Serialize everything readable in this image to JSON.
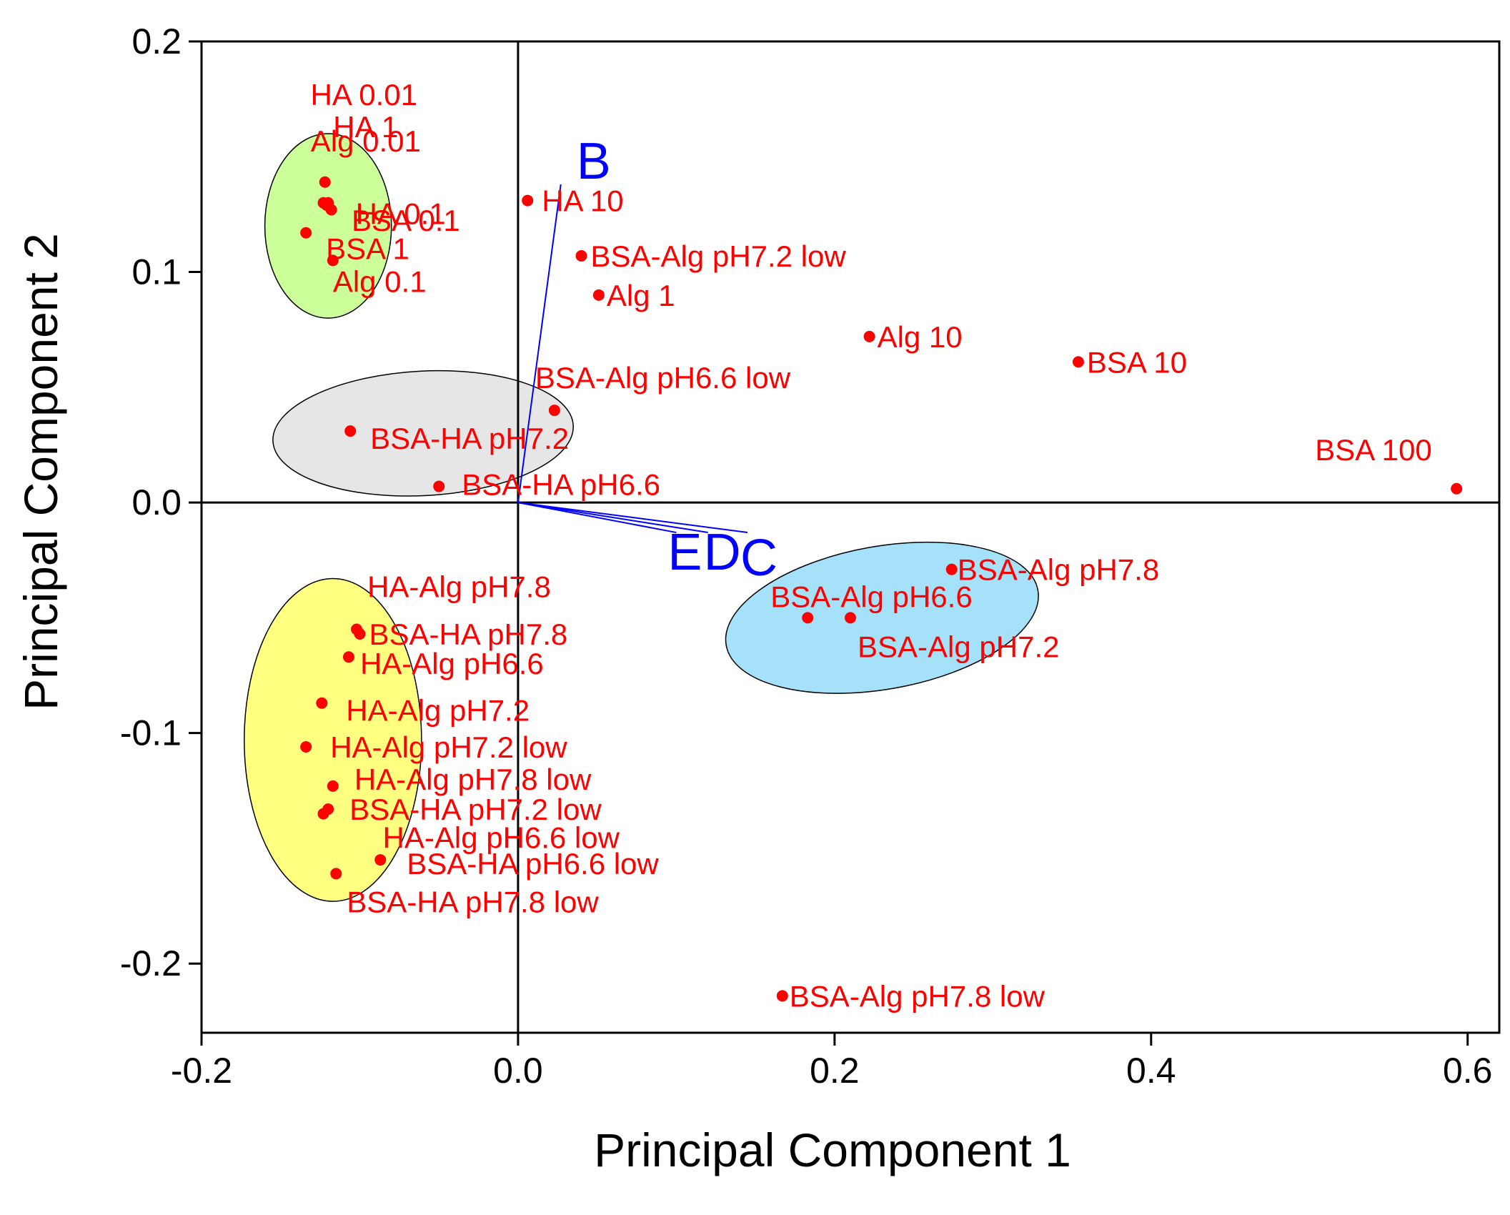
{
  "chart_data": {
    "type": "scatter",
    "title": "",
    "xlabel": "Principal Component 1",
    "ylabel": "Principal Component 2",
    "xlim": [
      -0.2,
      0.62
    ],
    "ylim": [
      -0.23,
      0.2
    ],
    "xticks": [
      -0.2,
      0.0,
      0.2,
      0.4,
      0.6
    ],
    "xtick_labels": [
      "-0.2",
      "0.0",
      "0.2",
      "0.4",
      "0.6"
    ],
    "yticks": [
      -0.2,
      -0.1,
      0.0,
      0.1,
      0.2
    ],
    "ytick_labels": [
      "-0.2",
      "-0.1",
      "0.0",
      "0.1",
      "0.2"
    ],
    "grid": false,
    "colors": {
      "points": "#ff0000",
      "vectors": "#0000ff",
      "axes": "#000000",
      "cluster_green": "#ccff99",
      "cluster_gray": "#e6e6e6",
      "cluster_yellow": "#ffff80",
      "cluster_blue": "#a6e1fa"
    },
    "clusters": [
      {
        "name": "green",
        "center": [
          -0.12,
          0.12
        ],
        "rx": 0.04,
        "ry": 0.04,
        "rotation": 0
      },
      {
        "name": "gray",
        "center": [
          -0.06,
          0.03
        ],
        "rx": 0.095,
        "ry": 0.027,
        "rotation": -3
      },
      {
        "name": "yellow",
        "center": [
          -0.117,
          -0.103
        ],
        "rx": 0.056,
        "ry": 0.07,
        "rotation": 0
      },
      {
        "name": "blue",
        "center": [
          0.23,
          -0.05
        ],
        "rx": 0.1,
        "ry": 0.031,
        "rotation": -10
      }
    ],
    "vectors": [
      {
        "label": "B",
        "x": 0.027,
        "y": 0.138
      },
      {
        "label": "E",
        "x": 0.1,
        "y": -0.013
      },
      {
        "label": "D",
        "x": 0.12,
        "y": -0.013
      },
      {
        "label": "C",
        "x": 0.145,
        "y": -0.013
      }
    ],
    "points": [
      {
        "label": "HA 0.01",
        "x": -0.123,
        "y": 0.13
      },
      {
        "label": "HA 1",
        "x": -0.12,
        "y": 0.13
      },
      {
        "label": "Alg 0.01",
        "x": -0.122,
        "y": 0.139
      },
      {
        "label": "HA 0.1",
        "x": -0.118,
        "y": 0.127
      },
      {
        "label": "BSA 0.1",
        "x": -0.121,
        "y": 0.129
      },
      {
        "label": "BSA 1",
        "x": -0.134,
        "y": 0.117
      },
      {
        "label": "Alg 0.1",
        "x": -0.117,
        "y": 0.105
      },
      {
        "label": "HA 10",
        "x": 0.006,
        "y": 0.131
      },
      {
        "label": "BSA-Alg pH7.2 low",
        "x": 0.04,
        "y": 0.107
      },
      {
        "label": "Alg 1",
        "x": 0.051,
        "y": 0.09
      },
      {
        "label": "Alg 10",
        "x": 0.222,
        "y": 0.072
      },
      {
        "label": "BSA 10",
        "x": 0.354,
        "y": 0.061
      },
      {
        "label": "BSA-Alg pH6.6 low",
        "x": 0.023,
        "y": 0.04
      },
      {
        "label": "BSA-HA pH7.2",
        "x": -0.106,
        "y": 0.031
      },
      {
        "label": "BSA-HA pH6.6",
        "x": -0.05,
        "y": 0.007
      },
      {
        "label": "BSA 100",
        "x": 0.593,
        "y": 0.006
      },
      {
        "label": "BSA-Alg pH7.8",
        "x": 0.274,
        "y": -0.029
      },
      {
        "label": "BSA-Alg pH6.6",
        "x": 0.183,
        "y": -0.05
      },
      {
        "label": "BSA-Alg pH7.2",
        "x": 0.21,
        "y": -0.05
      },
      {
        "label": "HA-Alg pH7.8",
        "x": -0.102,
        "y": -0.055
      },
      {
        "label": "BSA-HA pH7.8",
        "x": -0.1,
        "y": -0.057
      },
      {
        "label": "HA-Alg pH6.6",
        "x": -0.107,
        "y": -0.067
      },
      {
        "label": "HA-Alg pH7.2",
        "x": -0.124,
        "y": -0.087
      },
      {
        "label": "HA-Alg pH7.2 low",
        "x": -0.134,
        "y": -0.106
      },
      {
        "label": "HA-Alg pH7.8 low",
        "x": -0.117,
        "y": -0.123
      },
      {
        "label": "BSA-HA pH7.2 low",
        "x": -0.12,
        "y": -0.133
      },
      {
        "label": "HA-Alg pH6.6 low",
        "x": -0.123,
        "y": -0.135
      },
      {
        "label": "BSA-HA pH6.6 low",
        "x": -0.087,
        "y": -0.155
      },
      {
        "label": "BSA-HA pH7.8 low",
        "x": -0.115,
        "y": -0.161
      },
      {
        "label": "BSA-Alg pH7.8 low",
        "x": 0.167,
        "y": -0.214
      }
    ]
  }
}
